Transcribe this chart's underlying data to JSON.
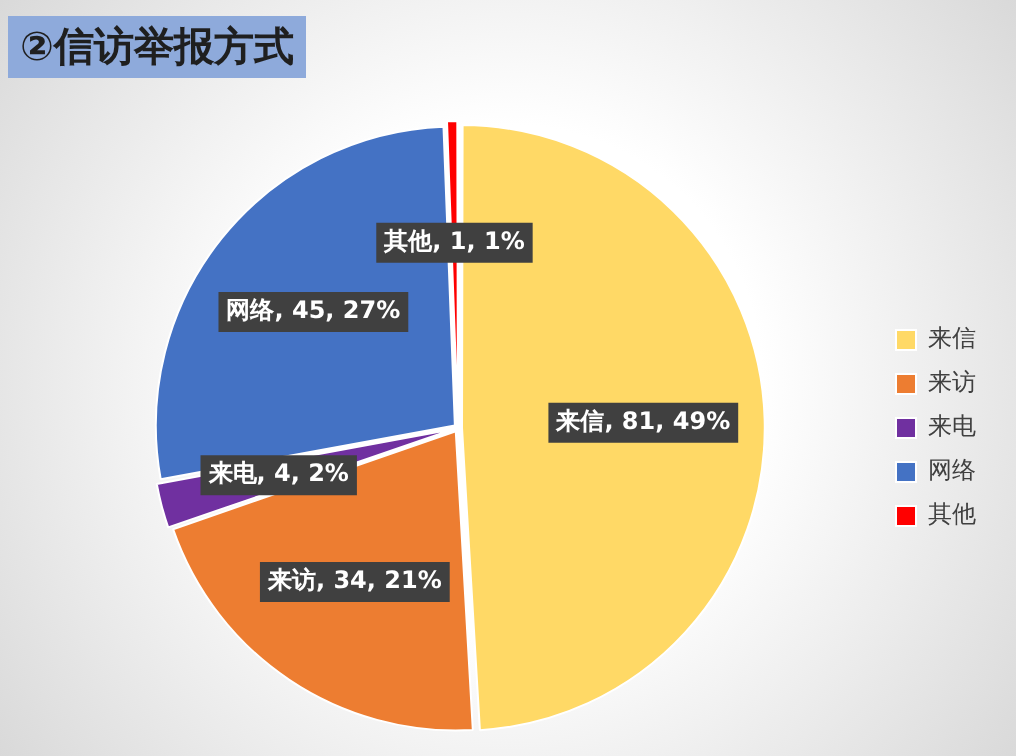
{
  "chart_data": {
    "type": "pie",
    "title": "②信访举报方式",
    "categories": [
      "来信",
      "来访",
      "来电",
      "网络",
      "其他"
    ],
    "values": [
      81,
      34,
      4,
      45,
      1
    ],
    "colors": [
      "#ffd966",
      "#ed7d31",
      "#7030a0",
      "#4472c4",
      "#ff0000"
    ],
    "value_labels": [
      "来信, 81, 49%",
      "来访, 34, 21%",
      "来电, 4, 2%",
      "网络, 45, 27%",
      "其他, 1, 1%"
    ],
    "legend": "right"
  }
}
